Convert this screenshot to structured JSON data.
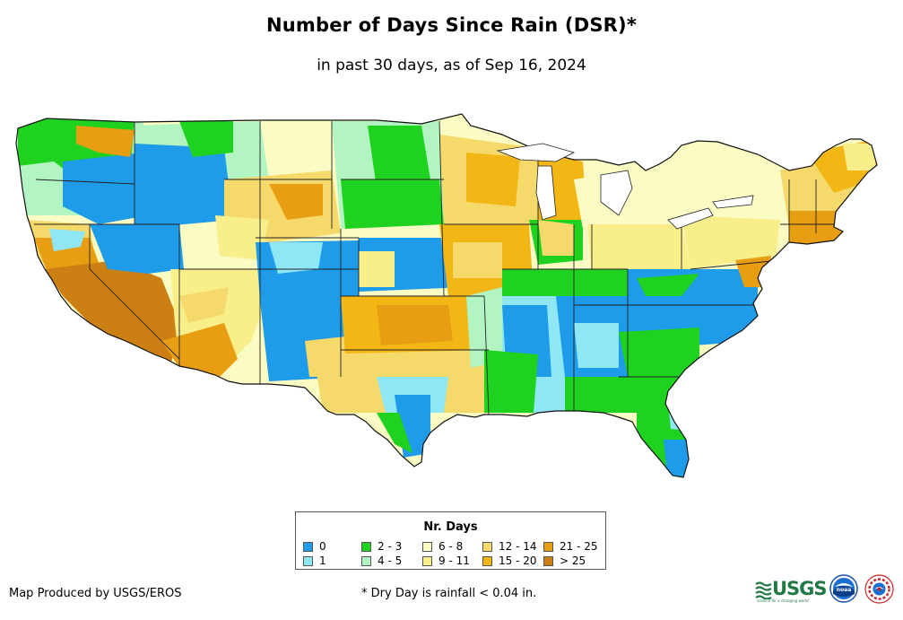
{
  "map": {
    "title": "Number of Days Since Rain (DSR)*",
    "subtitle": "in past 30 days, as of Sep 16, 2024",
    "region": "Contiguous United States"
  },
  "legend": {
    "title": "Nr. Days",
    "items": [
      {
        "label": "0",
        "color": "#1e9be9"
      },
      {
        "label": "1",
        "color": "#8fe6f5"
      },
      {
        "label": "2 - 3",
        "color": "#1fd21f"
      },
      {
        "label": "4 - 5",
        "color": "#b2f5c2"
      },
      {
        "label": "6 - 8",
        "color": "#fbfbc4"
      },
      {
        "label": "9 - 11",
        "color": "#f8ef8b"
      },
      {
        "label": "12 - 14",
        "color": "#f5da6b"
      },
      {
        "label": "15 - 20",
        "color": "#f2b715"
      },
      {
        "label": "21 - 25",
        "color": "#e89e12"
      },
      {
        "label": "> 25",
        "color": "#cc7f12"
      }
    ]
  },
  "footer": {
    "credit": "Map Produced by USGS/EROS",
    "footnote": "* Dry Day is rainfall < 0.04 in."
  },
  "logos": {
    "usgs": "USGS",
    "usgs_tagline": "science for a changing world",
    "noaa": "noaa",
    "nws": "NWS"
  }
}
